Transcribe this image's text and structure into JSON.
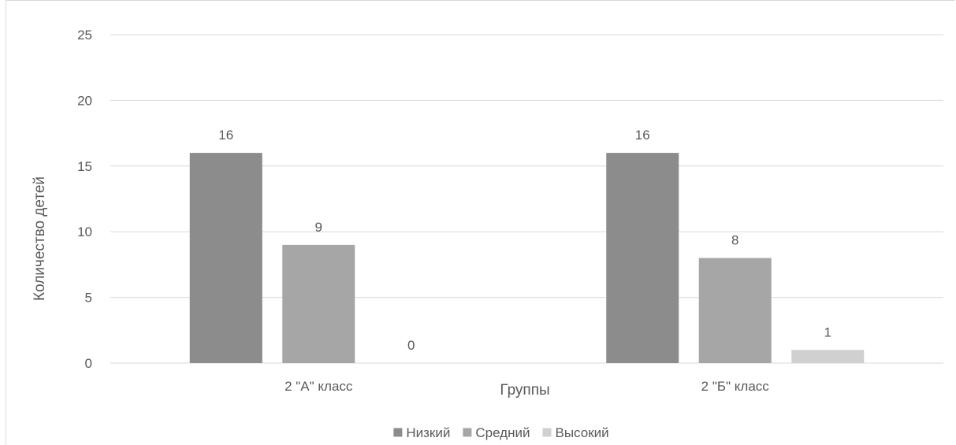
{
  "chart_data": {
    "type": "bar",
    "title": "",
    "xlabel": "Группы",
    "ylabel": "Количество детей",
    "categories": [
      "2 \"А\" класс",
      "2 \"Б\" класс"
    ],
    "series": [
      {
        "name": "Низкий",
        "values": [
          16,
          16
        ],
        "color": "#8c8c8c"
      },
      {
        "name": "Средний",
        "values": [
          9,
          8
        ],
        "color": "#a6a6a6"
      },
      {
        "name": "Высокий",
        "values": [
          0,
          1
        ],
        "color": "#d0d0d0"
      }
    ],
    "ylim": [
      0,
      25
    ],
    "yticks": [
      0,
      5,
      10,
      15,
      20,
      25
    ],
    "grid": true,
    "data_labels": true,
    "legend_position": "bottom"
  }
}
